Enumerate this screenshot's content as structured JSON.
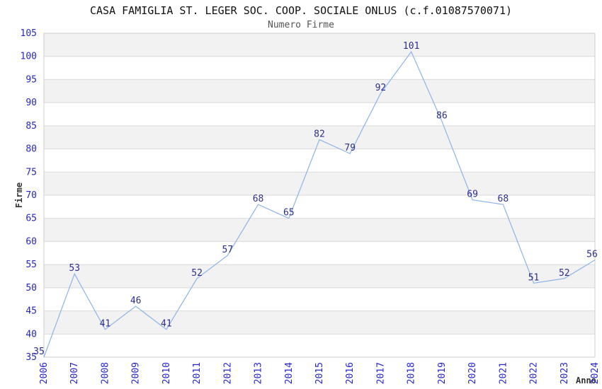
{
  "chart_data": {
    "type": "line",
    "title": "CASA FAMIGLIA ST. LEGER SOC. COOP. SOCIALE ONLUS (c.f.01087570071)",
    "subtitle": "Numero Firme",
    "xlabel": "Anno",
    "ylabel": "Firme",
    "x": [
      2006,
      2007,
      2008,
      2009,
      2010,
      2011,
      2012,
      2013,
      2014,
      2015,
      2016,
      2017,
      2018,
      2019,
      2020,
      2021,
      2022,
      2023,
      2024
    ],
    "values": [
      35,
      53,
      41,
      46,
      41,
      52,
      57,
      68,
      65,
      82,
      79,
      92,
      101,
      86,
      69,
      68,
      51,
      52,
      56
    ],
    "ylim": [
      35,
      105
    ],
    "ytick_step": 5,
    "yticks": [
      35,
      40,
      45,
      50,
      55,
      60,
      65,
      70,
      75,
      80,
      85,
      90,
      95,
      100,
      105
    ],
    "grid": "alternating-horizontal-bands",
    "legend": "none",
    "point_labels": true
  },
  "colors": {
    "line": "#8cb4e8",
    "point_label": "#2e2e8a",
    "tick_label": "#2626cc",
    "band_gray": "#f2f2f2",
    "band_white": "#ffffff",
    "grid_line": "#d9d9d9",
    "plot_border": "#cccccc",
    "title": "#111111",
    "subtitle": "#555555",
    "axis_label": "#333333",
    "background": "#ffffff"
  }
}
